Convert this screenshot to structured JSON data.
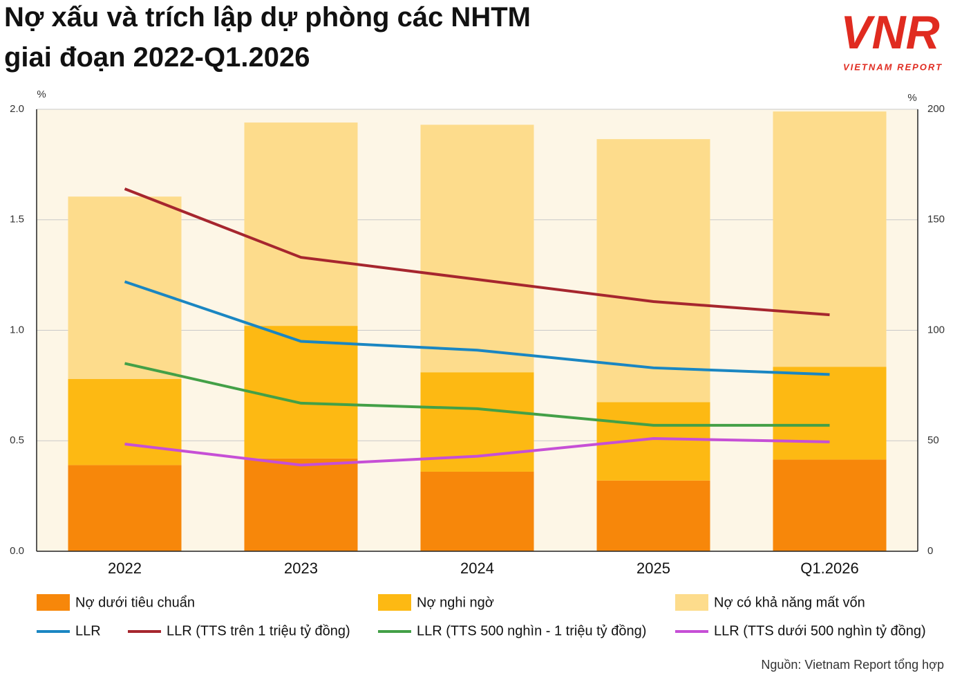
{
  "chart_data": {
    "type": "combo",
    "title": [
      "Nợ xấu và trích lập dự phòng các NHTM",
      "giai đoạn 2022-Q1.2026"
    ],
    "logo": {
      "mark": "VNR",
      "text": "VIETNAM REPORT"
    },
    "y_unit": "%",
    "y2_unit": "%",
    "source": "Nguồn: Vietnam Report tổng hợp",
    "categories": [
      "2022",
      "2023",
      "2024",
      "2025",
      "Q1.2026"
    ],
    "ylim": [
      0,
      2
    ],
    "yticks": [
      {
        "value": 0,
        "label": "0.0"
      },
      {
        "value": 0.5,
        "label": "0.5"
      },
      {
        "value": 1,
        "label": "1.0"
      },
      {
        "value": 1.5,
        "label": "1.5"
      },
      {
        "value": 2,
        "label": "2.0"
      }
    ],
    "y2lim": [
      0,
      200
    ],
    "y2ticks": [
      0,
      50,
      100,
      150,
      200
    ],
    "grid": true,
    "plot_background": "#fdf6e6",
    "series": [
      {
        "name": "Nợ dưới tiêu chuẩn",
        "color": "#f7870a",
        "kind": "bar",
        "values": [
          0.39,
          0.42,
          0.36,
          0.32,
          0.415
        ]
      },
      {
        "name": "Nợ nghi ngờ",
        "color": "#fdb913",
        "kind": "bar",
        "values": [
          0.39,
          0.6,
          0.45,
          0.355,
          0.42
        ]
      },
      {
        "name": "Nợ có khả năng mất vốn",
        "color": "#fddc8c",
        "kind": "bar",
        "values": [
          0.825,
          0.92,
          1.12,
          1.19,
          1.155
        ]
      },
      {
        "name": "LLR",
        "color": "#1a86c2",
        "kind": "line",
        "axis": "y2",
        "values": [
          122,
          95,
          91,
          83,
          80
        ]
      },
      {
        "name": "LLR (TTS trên 1 triệu tỷ đồng)",
        "color": "#a6262e",
        "kind": "line",
        "axis": "y2",
        "values": [
          164,
          133,
          123,
          113,
          107
        ]
      },
      {
        "name": "LLR (TTS 500 nghìn - 1 triệu tỷ đồng)",
        "color": "#43a047",
        "kind": "line",
        "axis": "y2",
        "values": [
          85,
          67,
          64.5,
          57,
          57
        ]
      },
      {
        "name": "LLR (TTS dưới 500 nghìn tỷ đồng)",
        "color": "#c64fd6",
        "kind": "line",
        "axis": "y2",
        "values": [
          48.5,
          39,
          43,
          51,
          49.5
        ]
      }
    ]
  }
}
